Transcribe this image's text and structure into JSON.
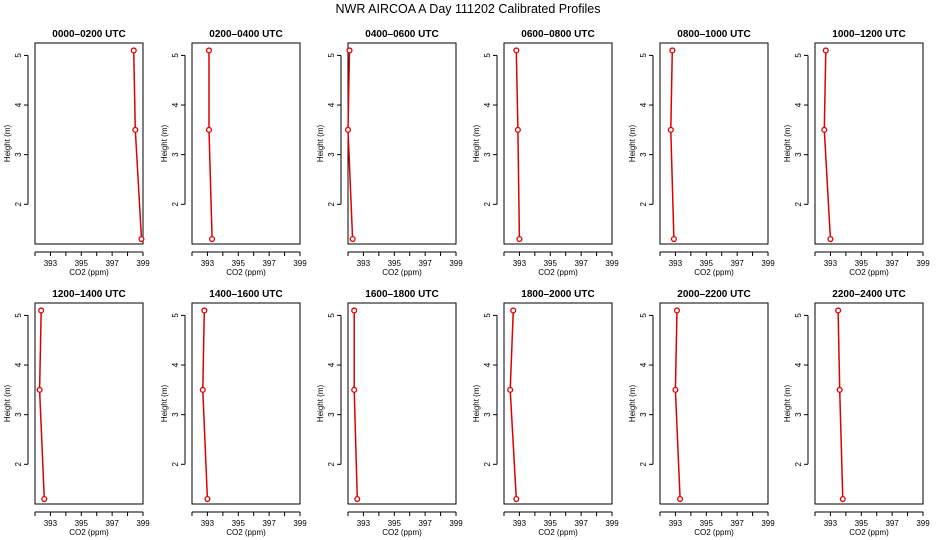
{
  "title": "NWR AIRCOA A  Day 111202  Calibrated Profiles",
  "colors": {
    "series": "#dd0000",
    "axis": "#000000"
  },
  "chart_data": [
    {
      "type": "line",
      "title": "0000–0200 UTC",
      "xlabel": "CO2 (ppm)",
      "ylabel": "Height (m)",
      "xlim": [
        392,
        399
      ],
      "ylim": [
        1.2,
        5.25
      ],
      "xticks": [
        393,
        395,
        397,
        399
      ],
      "yticks": [
        2,
        3,
        4,
        5
      ],
      "grid": false,
      "series": [
        {
          "x": [
            398.9,
            398.5,
            398.4
          ],
          "y": [
            1.3,
            3.5,
            5.1
          ]
        }
      ]
    },
    {
      "type": "line",
      "title": "0200–0400 UTC",
      "xlabel": "CO2 (ppm)",
      "ylabel": "Height (m)",
      "xlim": [
        392,
        399
      ],
      "ylim": [
        1.2,
        5.25
      ],
      "xticks": [
        393,
        395,
        397,
        399
      ],
      "yticks": [
        2,
        3,
        4,
        5
      ],
      "grid": false,
      "series": [
        {
          "x": [
            393.3,
            393.1,
            393.1
          ],
          "y": [
            1.3,
            3.5,
            5.1
          ]
        }
      ]
    },
    {
      "type": "line",
      "title": "0400–0600 UTC",
      "xlabel": "CO2 (ppm)",
      "ylabel": "Height (m)",
      "xlim": [
        392,
        399
      ],
      "ylim": [
        1.2,
        5.25
      ],
      "xticks": [
        393,
        395,
        397,
        399
      ],
      "yticks": [
        2,
        3,
        4,
        5
      ],
      "grid": false,
      "series": [
        {
          "x": [
            392.3,
            392.0,
            392.1
          ],
          "y": [
            1.3,
            3.5,
            5.1
          ]
        }
      ]
    },
    {
      "type": "line",
      "title": "0600–0800 UTC",
      "xlabel": "CO2 (ppm)",
      "ylabel": "Height (m)",
      "xlim": [
        392,
        399
      ],
      "ylim": [
        1.2,
        5.25
      ],
      "xticks": [
        393,
        395,
        397,
        399
      ],
      "yticks": [
        2,
        3,
        4,
        5
      ],
      "grid": false,
      "series": [
        {
          "x": [
            393.0,
            392.9,
            392.8
          ],
          "y": [
            1.3,
            3.5,
            5.1
          ]
        }
      ]
    },
    {
      "type": "line",
      "title": "0800–1000 UTC",
      "xlabel": "CO2 (ppm)",
      "ylabel": "Height (m)",
      "xlim": [
        392,
        399
      ],
      "ylim": [
        1.2,
        5.25
      ],
      "xticks": [
        393,
        395,
        397,
        399
      ],
      "yticks": [
        2,
        3,
        4,
        5
      ],
      "grid": false,
      "series": [
        {
          "x": [
            392.9,
            392.7,
            392.8
          ],
          "y": [
            1.3,
            3.5,
            5.1
          ]
        }
      ]
    },
    {
      "type": "line",
      "title": "1000–1200 UTC",
      "xlabel": "CO2 (ppm)",
      "ylabel": "Height (m)",
      "xlim": [
        392,
        399
      ],
      "ylim": [
        1.2,
        5.25
      ],
      "xticks": [
        393,
        395,
        397,
        399
      ],
      "yticks": [
        2,
        3,
        4,
        5
      ],
      "grid": false,
      "series": [
        {
          "x": [
            393.0,
            392.6,
            392.7
          ],
          "y": [
            1.3,
            3.5,
            5.1
          ]
        }
      ]
    },
    {
      "type": "line",
      "title": "1200–1400 UTC",
      "xlabel": "CO2 (ppm)",
      "ylabel": "Height (m)",
      "xlim": [
        392,
        399
      ],
      "ylim": [
        1.2,
        5.25
      ],
      "xticks": [
        393,
        395,
        397,
        399
      ],
      "yticks": [
        2,
        3,
        4,
        5
      ],
      "grid": false,
      "series": [
        {
          "x": [
            392.6,
            392.3,
            392.4
          ],
          "y": [
            1.3,
            3.5,
            5.1
          ]
        }
      ]
    },
    {
      "type": "line",
      "title": "1400–1600 UTC",
      "xlabel": "CO2 (ppm)",
      "ylabel": "Height (m)",
      "xlim": [
        392,
        399
      ],
      "ylim": [
        1.2,
        5.25
      ],
      "xticks": [
        393,
        395,
        397,
        399
      ],
      "yticks": [
        2,
        3,
        4,
        5
      ],
      "grid": false,
      "series": [
        {
          "x": [
            393.0,
            392.7,
            392.8
          ],
          "y": [
            1.3,
            3.5,
            5.1
          ]
        }
      ]
    },
    {
      "type": "line",
      "title": "1600–1800 UTC",
      "xlabel": "CO2 (ppm)",
      "ylabel": "Height (m)",
      "xlim": [
        392,
        399
      ],
      "ylim": [
        1.2,
        5.25
      ],
      "xticks": [
        393,
        395,
        397,
        399
      ],
      "yticks": [
        2,
        3,
        4,
        5
      ],
      "grid": false,
      "series": [
        {
          "x": [
            392.6,
            392.4,
            392.4
          ],
          "y": [
            1.3,
            3.5,
            5.1
          ]
        }
      ]
    },
    {
      "type": "line",
      "title": "1800–2000 UTC",
      "xlabel": "CO2 (ppm)",
      "ylabel": "Height (m)",
      "xlim": [
        392,
        399
      ],
      "ylim": [
        1.2,
        5.25
      ],
      "xticks": [
        393,
        395,
        397,
        399
      ],
      "yticks": [
        2,
        3,
        4,
        5
      ],
      "grid": false,
      "series": [
        {
          "x": [
            392.8,
            392.4,
            392.6
          ],
          "y": [
            1.3,
            3.5,
            5.1
          ]
        }
      ]
    },
    {
      "type": "line",
      "title": "2000–2200 UTC",
      "xlabel": "CO2 (ppm)",
      "ylabel": "Height (m)",
      "xlim": [
        392,
        399
      ],
      "ylim": [
        1.2,
        5.25
      ],
      "xticks": [
        393,
        395,
        397,
        399
      ],
      "yticks": [
        2,
        3,
        4,
        5
      ],
      "grid": false,
      "series": [
        {
          "x": [
            393.3,
            393.0,
            393.1
          ],
          "y": [
            1.3,
            3.5,
            5.1
          ]
        }
      ]
    },
    {
      "type": "line",
      "title": "2200–2400 UTC",
      "xlabel": "CO2 (ppm)",
      "ylabel": "Height (m)",
      "xlim": [
        392,
        399
      ],
      "ylim": [
        1.2,
        5.25
      ],
      "xticks": [
        393,
        395,
        397,
        399
      ],
      "yticks": [
        2,
        3,
        4,
        5
      ],
      "grid": false,
      "series": [
        {
          "x": [
            393.8,
            393.6,
            393.5
          ],
          "y": [
            1.3,
            3.5,
            5.1
          ]
        }
      ]
    }
  ]
}
